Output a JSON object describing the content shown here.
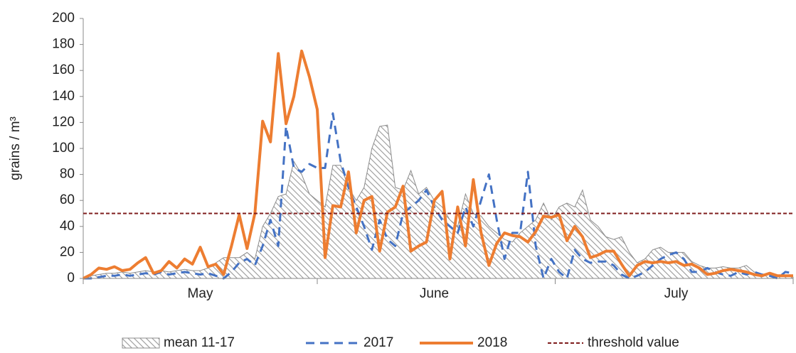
{
  "chart_data": {
    "type": "line",
    "ylabel": "grains / m³",
    "categories": [
      null,
      null,
      null,
      null,
      null,
      null,
      null,
      null,
      null,
      null,
      null,
      null,
      null,
      null,
      null,
      "May",
      null,
      null,
      null,
      null,
      null,
      null,
      null,
      null,
      null,
      null,
      null,
      null,
      null,
      null,
      null,
      null,
      null,
      null,
      null,
      null,
      null,
      null,
      null,
      null,
      null,
      null,
      null,
      null,
      null,
      "June",
      null,
      null,
      null,
      null,
      null,
      null,
      null,
      null,
      null,
      null,
      null,
      null,
      null,
      null,
      null,
      null,
      null,
      null,
      null,
      null,
      null,
      null,
      null,
      null,
      null,
      null,
      null,
      null,
      null,
      null,
      "July",
      null,
      null,
      null,
      null,
      null,
      null,
      null,
      null,
      null,
      null,
      null,
      null,
      null,
      null,
      null
    ],
    "series": [
      {
        "name": "mean 11-17",
        "style": "hatched-area",
        "color": "#8c8c8c",
        "values": [
          1,
          2,
          3,
          4,
          4,
          5,
          4,
          5,
          6,
          5,
          6,
          5,
          6,
          7,
          6,
          6,
          8,
          12,
          16,
          16,
          16,
          20,
          15,
          40,
          50,
          63,
          65,
          90,
          80,
          65,
          60,
          55,
          87,
          87,
          70,
          60,
          70,
          100,
          117,
          118,
          70,
          68,
          83,
          65,
          70,
          60,
          55,
          45,
          40,
          65,
          50,
          48,
          40,
          35,
          30,
          28,
          35,
          40,
          45,
          58,
          45,
          55,
          58,
          55,
          68,
          45,
          40,
          32,
          30,
          32,
          20,
          12,
          15,
          22,
          24,
          20,
          20,
          20,
          13,
          10,
          8,
          8,
          9,
          8,
          8,
          10,
          5,
          3,
          4,
          2,
          2,
          1
        ]
      },
      {
        "name": "2017",
        "style": "dashed",
        "color": "#4472c4",
        "values": [
          0,
          0,
          1,
          2,
          2,
          3,
          2,
          3,
          4,
          3,
          5,
          3,
          4,
          5,
          4,
          3,
          4,
          2,
          0,
          5,
          12,
          15,
          10,
          25,
          45,
          25,
          117,
          85,
          82,
          88,
          85,
          85,
          127,
          90,
          70,
          55,
          40,
          22,
          45,
          30,
          25,
          50,
          55,
          60,
          68,
          55,
          45,
          40,
          35,
          55,
          40,
          60,
          80,
          45,
          15,
          35,
          35,
          82,
          25,
          0,
          15,
          5,
          0,
          22,
          15,
          12,
          13,
          13,
          10,
          3,
          0,
          2,
          5,
          10,
          15,
          18,
          20,
          15,
          5,
          5,
          8,
          5,
          3,
          2,
          5,
          3,
          5,
          3,
          2,
          0,
          5,
          4
        ]
      },
      {
        "name": "2018",
        "style": "solid",
        "color": "#ed7d31",
        "values": [
          0,
          3,
          8,
          7,
          9,
          6,
          7,
          12,
          16,
          4,
          6,
          13,
          8,
          15,
          11,
          24,
          9,
          11,
          3,
          25,
          49,
          23,
          50,
          121,
          105,
          173,
          119,
          140,
          175,
          155,
          130,
          16,
          56,
          55,
          82,
          35,
          60,
          63,
          21,
          51,
          55,
          71,
          21,
          25,
          28,
          60,
          67,
          15,
          55,
          25,
          76,
          35,
          10,
          27,
          35,
          33,
          32,
          28,
          36,
          48,
          47,
          49,
          29,
          40,
          32,
          16,
          18,
          21,
          21,
          11,
          2,
          10,
          13,
          12,
          13,
          12,
          13,
          10,
          11,
          8,
          3,
          4,
          6,
          7,
          6,
          5,
          3,
          2,
          4,
          2,
          2,
          2
        ]
      }
    ],
    "threshold": {
      "name": "threshold value",
      "value": 50,
      "color": "#7f1d1d"
    },
    "ylim": [
      0,
      200
    ],
    "yticks": [
      0,
      20,
      40,
      60,
      80,
      100,
      120,
      140,
      160,
      180,
      200
    ]
  }
}
